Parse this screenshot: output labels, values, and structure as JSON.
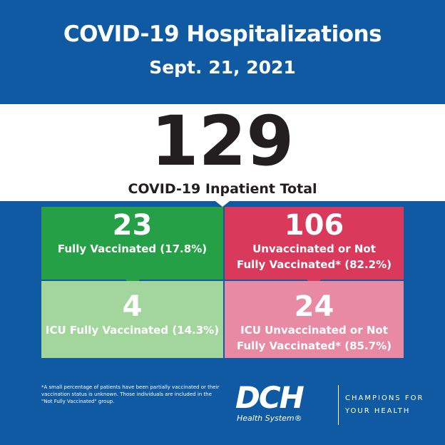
{
  "header": {
    "title": "COVID-19 Hospitalizations",
    "date": "Sept. 21, 2021"
  },
  "total": {
    "value": "129",
    "label": "COVID-19 Inpatient Total"
  },
  "boxes": {
    "fully_vaccinated": {
      "value": "23",
      "label": "Fully Vaccinated (17.8%)",
      "color": "#26a046"
    },
    "unvaccinated": {
      "value": "106",
      "label_line1": "Unvaccinated or Not",
      "label_line2": "Fully Vaccinated* (82.2%)",
      "color": "#d9395a"
    },
    "icu_fully_vaccinated": {
      "value": "4",
      "label": "ICU Fully Vaccinated (14.3%)",
      "color": "#a3d69c"
    },
    "icu_unvaccinated": {
      "value": "24",
      "label_line1": "ICU Unvaccinated or Not",
      "label_line2": "Fully Vaccinated* (85.7%)",
      "color": "#e98aa5"
    }
  },
  "footnote": "*A small percentage of patients have been partially vaccinated or their vaccination status is unknown. Those individuals are included in the \"Not Fully Vaccinated\" group.",
  "logo": {
    "mark": "DCH",
    "sub": "Health System",
    "registered": "®",
    "tagline_line1": "CHAMPIONS FOR",
    "tagline_line2": "YOUR HEALTH"
  },
  "colors": {
    "background": "#0f5aa2",
    "text_dark": "#231f20"
  }
}
